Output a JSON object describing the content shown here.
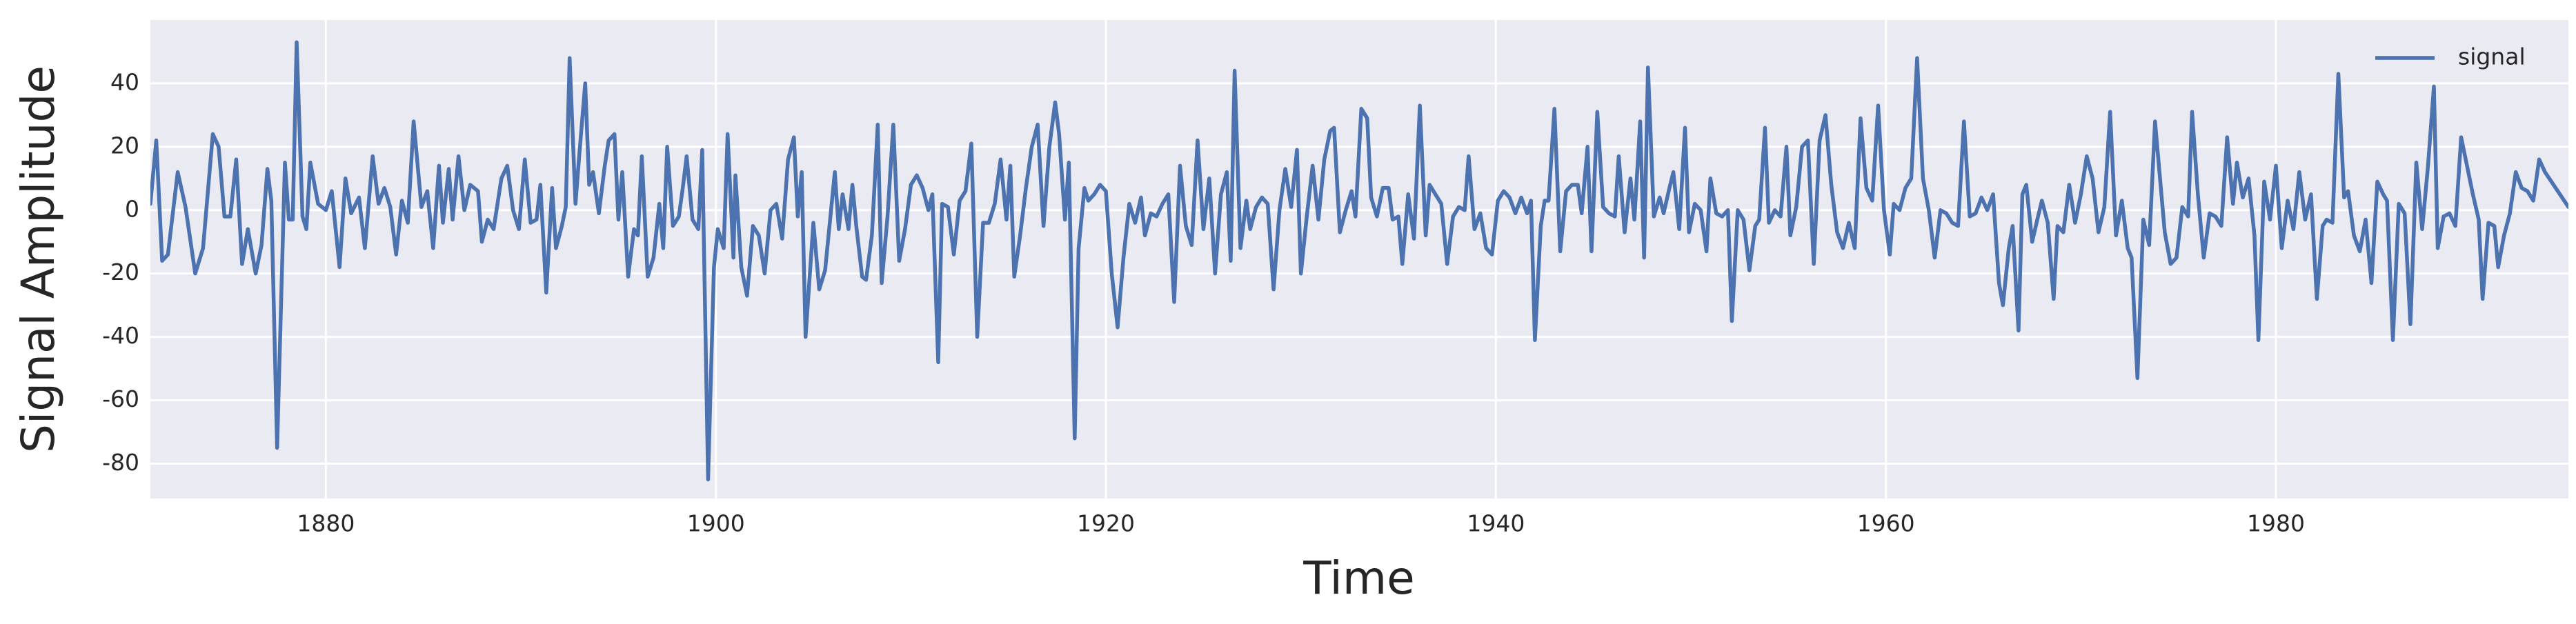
{
  "chart_data": {
    "type": "line",
    "xlabel": "Time",
    "ylabel": "Signal Amplitude",
    "xlim": [
      1871,
      1995
    ],
    "ylim": [
      -91,
      60
    ],
    "xticks": [
      1880,
      1900,
      1920,
      1940,
      1960,
      1980
    ],
    "yticks": [
      -80,
      -60,
      -40,
      -20,
      0,
      20,
      40
    ],
    "grid": true,
    "legend": "upper right",
    "x": [
      1871.0,
      1871.3,
      1871.6,
      1871.9,
      1872.4,
      1872.8,
      1873.3,
      1873.7,
      1874.2,
      1874.5,
      1874.8,
      1875.1,
      1875.4,
      1875.7,
      1876.0,
      1876.4,
      1876.7,
      1877.0,
      1877.2,
      1877.5,
      1877.9,
      1878.1,
      1878.3,
      1878.5,
      1878.8,
      1879.0,
      1879.2,
      1879.6,
      1880.0,
      1880.3,
      1880.7,
      1881.0,
      1881.3,
      1881.7,
      1882.0,
      1882.4,
      1882.7,
      1883.0,
      1883.3,
      1883.6,
      1883.9,
      1884.2,
      1884.5,
      1884.9,
      1885.2,
      1885.5,
      1885.8,
      1886.0,
      1886.3,
      1886.5,
      1886.8,
      1887.1,
      1887.4,
      1887.8,
      1888.0,
      1888.3,
      1888.6,
      1889.0,
      1889.3,
      1889.6,
      1889.9,
      1890.2,
      1890.5,
      1890.8,
      1891.0,
      1891.3,
      1891.6,
      1891.8,
      1892.1,
      1892.3,
      1892.5,
      1892.8,
      1893.0,
      1893.3,
      1893.5,
      1893.7,
      1894.0,
      1894.3,
      1894.5,
      1894.8,
      1895.0,
      1895.2,
      1895.5,
      1895.8,
      1896.0,
      1896.2,
      1896.5,
      1896.8,
      1897.1,
      1897.3,
      1897.5,
      1897.8,
      1898.1,
      1898.3,
      1898.5,
      1898.8,
      1899.1,
      1899.3,
      1899.6,
      1899.9,
      1900.1,
      1900.4,
      1900.6,
      1900.9,
      1901.0,
      1901.3,
      1901.6,
      1901.9,
      1902.2,
      1902.5,
      1902.8,
      1903.1,
      1903.4,
      1903.7,
      1904.0,
      1904.2,
      1904.4,
      1904.6,
      1905.0,
      1905.3,
      1905.6,
      1906.1,
      1906.3,
      1906.5,
      1906.8,
      1907.0,
      1907.2,
      1907.5,
      1907.7,
      1908.0,
      1908.3,
      1908.5,
      1908.8,
      1909.1,
      1909.4,
      1909.7,
      1910.0,
      1910.3,
      1910.6,
      1910.9,
      1911.1,
      1911.4,
      1911.6,
      1911.9,
      1912.2,
      1912.5,
      1912.8,
      1913.1,
      1913.4,
      1913.7,
      1914.0,
      1914.3,
      1914.6,
      1914.9,
      1915.1,
      1915.3,
      1915.6,
      1915.9,
      1916.2,
      1916.5,
      1916.8,
      1917.1,
      1917.4,
      1917.6,
      1917.9,
      1918.1,
      1918.4,
      1918.6,
      1918.9,
      1919.1,
      1919.4,
      1919.7,
      1920.0,
      1920.3,
      1920.6,
      1920.9,
      1921.2,
      1921.5,
      1921.8,
      1922.0,
      1922.3,
      1922.6,
      1922.9,
      1923.2,
      1923.5,
      1923.8,
      1924.1,
      1924.4,
      1924.7,
      1925.0,
      1925.3,
      1925.6,
      1925.9,
      1926.2,
      1926.4,
      1926.6,
      1926.9,
      1927.2,
      1927.4,
      1927.7,
      1928.0,
      1928.3,
      1928.6,
      1928.9,
      1929.2,
      1929.5,
      1929.8,
      1930.0,
      1930.3,
      1930.6,
      1930.9,
      1931.2,
      1931.5,
      1931.7,
      1932.0,
      1932.3,
      1932.6,
      1932.8,
      1933.1,
      1933.4,
      1933.6,
      1933.9,
      1934.2,
      1934.5,
      1934.7,
      1935.0,
      1935.2,
      1935.5,
      1935.8,
      1936.1,
      1936.4,
      1936.6,
      1936.9,
      1937.2,
      1937.5,
      1937.8,
      1938.1,
      1938.4,
      1938.6,
      1938.9,
      1939.2,
      1939.5,
      1939.8,
      1940.1,
      1940.4,
      1940.7,
      1941.0,
      1941.3,
      1941.6,
      1941.8,
      1942.0,
      1942.3,
      1942.5,
      1942.7,
      1943.0,
      1943.3,
      1943.6,
      1943.9,
      1944.2,
      1944.4,
      1944.7,
      1944.9,
      1945.2,
      1945.5,
      1945.8,
      1946.1,
      1946.3,
      1946.6,
      1946.9,
      1947.1,
      1947.4,
      1947.6,
      1947.8,
      1948.1,
      1948.4,
      1948.6,
      1948.9,
      1949.1,
      1949.4,
      1949.7,
      1949.9,
      1950.2,
      1950.5,
      1950.8,
      1951.0,
      1951.3,
      1951.6,
      1951.9,
      1952.1,
      1952.4,
      1952.7,
      1953.0,
      1953.3,
      1953.5,
      1953.8,
      1954.0,
      1954.3,
      1954.6,
      1954.9,
      1955.1,
      1955.4,
      1955.7,
      1956.0,
      1956.3,
      1956.6,
      1956.9,
      1957.2,
      1957.5,
      1957.8,
      1958.1,
      1958.4,
      1958.7,
      1959.0,
      1959.3,
      1959.6,
      1959.9,
      1960.2,
      1960.4,
      1960.7,
      1961.0,
      1961.3,
      1961.6,
      1961.9,
      1962.2,
      1962.5,
      1962.8,
      1963.1,
      1963.4,
      1963.7,
      1964.0,
      1964.3,
      1964.6,
      1964.9,
      1965.2,
      1965.5,
      1965.8,
      1966.0,
      1966.3,
      1966.5,
      1966.8,
      1967.0,
      1967.2,
      1967.5,
      1967.8,
      1968.0,
      1968.3,
      1968.6,
      1968.8,
      1969.1,
      1969.4,
      1969.7,
      1970.0,
      1970.3,
      1970.6,
      1970.9,
      1971.2,
      1971.5,
      1971.8,
      1972.1,
      1972.4,
      1972.6,
      1972.9,
      1973.2,
      1973.5,
      1973.8,
      1974.0,
      1974.3,
      1974.6,
      1974.9,
      1975.2,
      1975.5,
      1975.7,
      1976.0,
      1976.3,
      1976.6,
      1976.9,
      1977.2,
      1977.5,
      1977.8,
      1978.0,
      1978.3,
      1978.6,
      1978.9,
      1979.1,
      1979.4,
      1979.7,
      1980.0,
      1980.3,
      1980.6,
      1980.9,
      1981.2,
      1981.5,
      1981.8,
      1982.1,
      1982.4,
      1982.6,
      1982.9,
      1983.2,
      1983.5,
      1983.7,
      1984.0,
      1984.3,
      1984.6,
      1984.9,
      1985.2,
      1985.5,
      1985.7,
      1986.0,
      1986.3,
      1986.6,
      1986.9,
      1987.2,
      1987.5,
      1987.8,
      1988.1,
      1988.3,
      1988.6,
      1988.9,
      1989.2,
      1989.5,
      1989.8,
      1990.1,
      1990.4,
      1990.6,
      1990.9,
      1991.2,
      1991.4,
      1991.7,
      1992.0,
      1992.3,
      1992.6,
      1992.9,
      1993.2,
      1993.5,
      1993.8,
      1995.0
    ],
    "series": [
      {
        "name": "signal",
        "color": "#4c72b0",
        "values": [
          2,
          22,
          -16,
          -14,
          12,
          1,
          -20,
          -12,
          24,
          20,
          -2,
          -2,
          16,
          -17,
          -6,
          -20,
          -11,
          13,
          3,
          -75,
          15,
          -3,
          -3,
          53,
          -2,
          -6,
          15,
          2,
          0,
          6,
          -18,
          10,
          -1,
          4,
          -12,
          17,
          2,
          7,
          1,
          -14,
          3,
          -4,
          28,
          1,
          6,
          -12,
          14,
          -4,
          13,
          -3,
          17,
          0,
          8,
          6,
          -10,
          -3,
          -6,
          10,
          14,
          0,
          -6,
          16,
          -4,
          -3,
          8,
          -26,
          7,
          -12,
          -5,
          1,
          48,
          2,
          18,
          40,
          8,
          12,
          -1,
          14,
          22,
          24,
          -3,
          12,
          -21,
          -6,
          -8,
          17,
          -21,
          -15,
          2,
          -12,
          20,
          -5,
          -2,
          7,
          17,
          -3,
          -6,
          19,
          -85,
          -18,
          -6,
          -12,
          24,
          -15,
          11,
          -18,
          -27,
          -5,
          -8,
          -20,
          0,
          2,
          -9,
          16,
          23,
          -2,
          12,
          -40,
          -4,
          -25,
          -19,
          12,
          -6,
          5,
          -6,
          8,
          -5,
          -21,
          -22,
          -8,
          27,
          -23,
          -2,
          27,
          -16,
          -6,
          8,
          11,
          7,
          0,
          5,
          -48,
          2,
          1,
          -14,
          3,
          6,
          21,
          -40,
          -4,
          -4,
          2,
          16,
          -3,
          14,
          -21,
          -8,
          7,
          20,
          27,
          -5,
          20,
          34,
          24,
          -3,
          15,
          -72,
          -12,
          7,
          3,
          5,
          8,
          6,
          -20,
          -37,
          -15,
          2,
          -4,
          4,
          -8,
          -1,
          -2,
          2,
          5,
          -29,
          14,
          -5,
          -11,
          22,
          -6,
          10,
          -20,
          5,
          12,
          -16,
          44,
          -12,
          3,
          -6,
          1,
          4,
          2,
          -25,
          0,
          13,
          1,
          19,
          -20,
          -2,
          14,
          -3,
          16,
          25,
          26,
          -7,
          0,
          6,
          -2,
          32,
          29,
          4,
          -2,
          7,
          7,
          -3,
          -2,
          -17,
          5,
          -9,
          33,
          -8,
          8,
          5,
          2,
          -17,
          -2,
          1,
          0,
          17,
          -6,
          -1,
          -12,
          -14,
          3,
          6,
          4,
          -1,
          4,
          -1,
          3,
          -41,
          -5,
          3,
          3,
          32,
          -13,
          6,
          8,
          8,
          -1,
          20,
          -13,
          31,
          1,
          -1,
          -2,
          17,
          -7,
          10,
          -3,
          28,
          -15,
          45,
          -2,
          4,
          -1,
          7,
          12,
          -6,
          26,
          -7,
          2,
          0,
          -13,
          10,
          -1,
          -2,
          0,
          -35,
          0,
          -3,
          -19,
          -5,
          -3,
          26,
          -4,
          0,
          -2,
          20,
          -8,
          1,
          20,
          22,
          -17,
          22,
          30,
          8,
          -7,
          -12,
          -4,
          -12,
          29,
          7,
          3,
          33,
          0,
          -14,
          2,
          0,
          7,
          10,
          48,
          10,
          0,
          -15,
          0,
          -1,
          -4,
          -5,
          28,
          -2,
          -1,
          4,
          0,
          5,
          -23,
          -30,
          -12,
          -5,
          -38,
          5,
          8,
          -10,
          -2,
          3,
          -4,
          -28,
          -5,
          -7,
          8,
          -4,
          5,
          17,
          10,
          -7,
          1,
          31,
          -8,
          3,
          -12,
          -15,
          -53,
          -3,
          -11,
          28,
          14,
          -7,
          -17,
          -15,
          1,
          -2,
          31,
          5,
          -15,
          -1,
          -2,
          -5,
          23,
          2,
          15,
          4,
          10,
          -8,
          -41,
          9,
          -3,
          14,
          -12,
          3,
          -6,
          12,
          -3,
          5,
          -28,
          -5,
          -3,
          -4,
          43,
          4,
          6,
          -8,
          -13,
          -3,
          -23,
          9,
          5,
          3,
          -41,
          2,
          -1,
          -36,
          15,
          -6,
          14,
          39,
          -12,
          -2,
          -1,
          -5,
          23,
          14,
          5,
          -3,
          -28,
          -4,
          -5,
          -18,
          -8,
          -1,
          12,
          7,
          6,
          3,
          16,
          12,
          1
        ]
      }
    ]
  }
}
